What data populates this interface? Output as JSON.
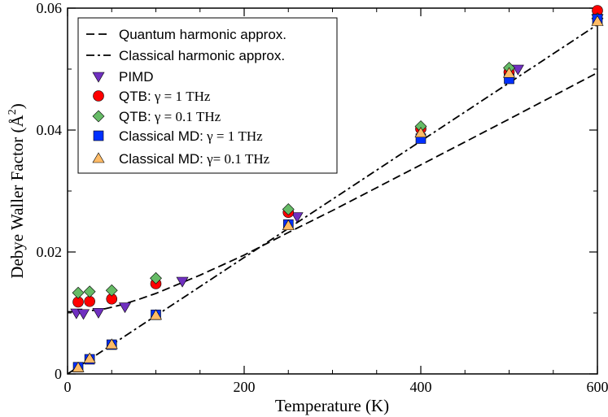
{
  "chart_data": {
    "type": "scatter",
    "title": "",
    "xlabel": "Temperature (K)",
    "ylabel_main": "Debye Waller Factor (",
    "ylabel_unit": "Å",
    "ylabel_exp": "2",
    "ylabel_close": ")",
    "xlim": [
      0,
      600
    ],
    "ylim": [
      0,
      0.06
    ],
    "x_ticks": [
      0,
      200,
      400,
      600
    ],
    "x_tick_labels": [
      "0",
      "200",
      "400",
      "600"
    ],
    "y_ticks": [
      0,
      0.02,
      0.04,
      0.06
    ],
    "y_tick_labels": [
      "0",
      "0.02",
      "0.04",
      "0.06"
    ],
    "grid": false,
    "legend_position": "top-left",
    "lines": [
      {
        "name": "Quantum harmonic approx.",
        "style": "dashed",
        "color": "#000000",
        "x": [
          0,
          10,
          20,
          40,
          60,
          80,
          100,
          125,
          150,
          200,
          250,
          300,
          400,
          500,
          600
        ],
        "y": [
          0.0102,
          0.0102,
          0.0103,
          0.0106,
          0.0113,
          0.0122,
          0.0132,
          0.0147,
          0.0162,
          0.0195,
          0.0232,
          0.0268,
          0.0343,
          0.0418,
          0.0494
        ]
      },
      {
        "name": "Classical harmonic approx.",
        "style": "dashdot",
        "color": "#000000",
        "x": [
          0,
          600
        ],
        "y": [
          0,
          0.0573
        ]
      }
    ],
    "series": [
      {
        "name": "PIMD",
        "marker": "triangle-down",
        "color": "#7030c0",
        "points": [
          [
            10,
            0.01
          ],
          [
            18,
            0.0099
          ],
          [
            35,
            0.0101
          ],
          [
            65,
            0.011
          ],
          [
            130,
            0.0152
          ],
          [
            260,
            0.0258
          ],
          [
            510,
            0.05
          ],
          [
            600,
            0.0583
          ]
        ]
      },
      {
        "name": "QTB: γ = 1 THz",
        "marker": "circle",
        "color": "#ff0000",
        "points": [
          [
            12,
            0.0118
          ],
          [
            25,
            0.0119
          ],
          [
            50,
            0.0123
          ],
          [
            100,
            0.0148
          ],
          [
            250,
            0.0265
          ],
          [
            400,
            0.0402
          ],
          [
            500,
            0.0495
          ],
          [
            600,
            0.0596
          ]
        ]
      },
      {
        "name": "QTB: γ = 0.1 THz",
        "marker": "diamond",
        "color": "#66bb66",
        "points": [
          [
            12,
            0.0133
          ],
          [
            25,
            0.0135
          ],
          [
            50,
            0.0137
          ],
          [
            100,
            0.0157
          ],
          [
            250,
            0.027
          ],
          [
            400,
            0.0406
          ],
          [
            500,
            0.0502
          ],
          [
            600,
            0.0583
          ]
        ]
      },
      {
        "name": "Classical MD: γ = 1 THz",
        "marker": "square",
        "color": "#0030ff",
        "points": [
          [
            12,
            0.0011
          ],
          [
            25,
            0.0024
          ],
          [
            50,
            0.0048
          ],
          [
            100,
            0.0097
          ],
          [
            250,
            0.0245
          ],
          [
            400,
            0.0386
          ],
          [
            500,
            0.0484
          ],
          [
            600,
            0.0582
          ]
        ]
      },
      {
        "name": "Classical MD: γ = 0.1 THz",
        "marker": "triangle-up",
        "color": "#ffbb66",
        "points": [
          [
            12,
            0.001
          ],
          [
            25,
            0.0025
          ],
          [
            50,
            0.0048
          ],
          [
            100,
            0.0096
          ],
          [
            250,
            0.0243
          ],
          [
            400,
            0.0395
          ],
          [
            500,
            0.0493
          ],
          [
            600,
            0.0578
          ]
        ]
      }
    ],
    "legend": [
      {
        "label_main": "Quantum harmonic approx.",
        "label_tail": ""
      },
      {
        "label_main": "Classical harmonic approx.",
        "label_tail": ""
      },
      {
        "label_main": "PIMD",
        "label_tail": ""
      },
      {
        "label_main": "QTB:",
        "label_tail": " γ = 1 THz"
      },
      {
        "label_main": "QTB:",
        "label_tail": " γ = 0.1 THz"
      },
      {
        "label_main": "Classical MD:",
        "label_tail": " γ = 1 THz"
      },
      {
        "label_main": "Classical MD:",
        "label_tail": " γ= 0.1 THz"
      }
    ]
  }
}
